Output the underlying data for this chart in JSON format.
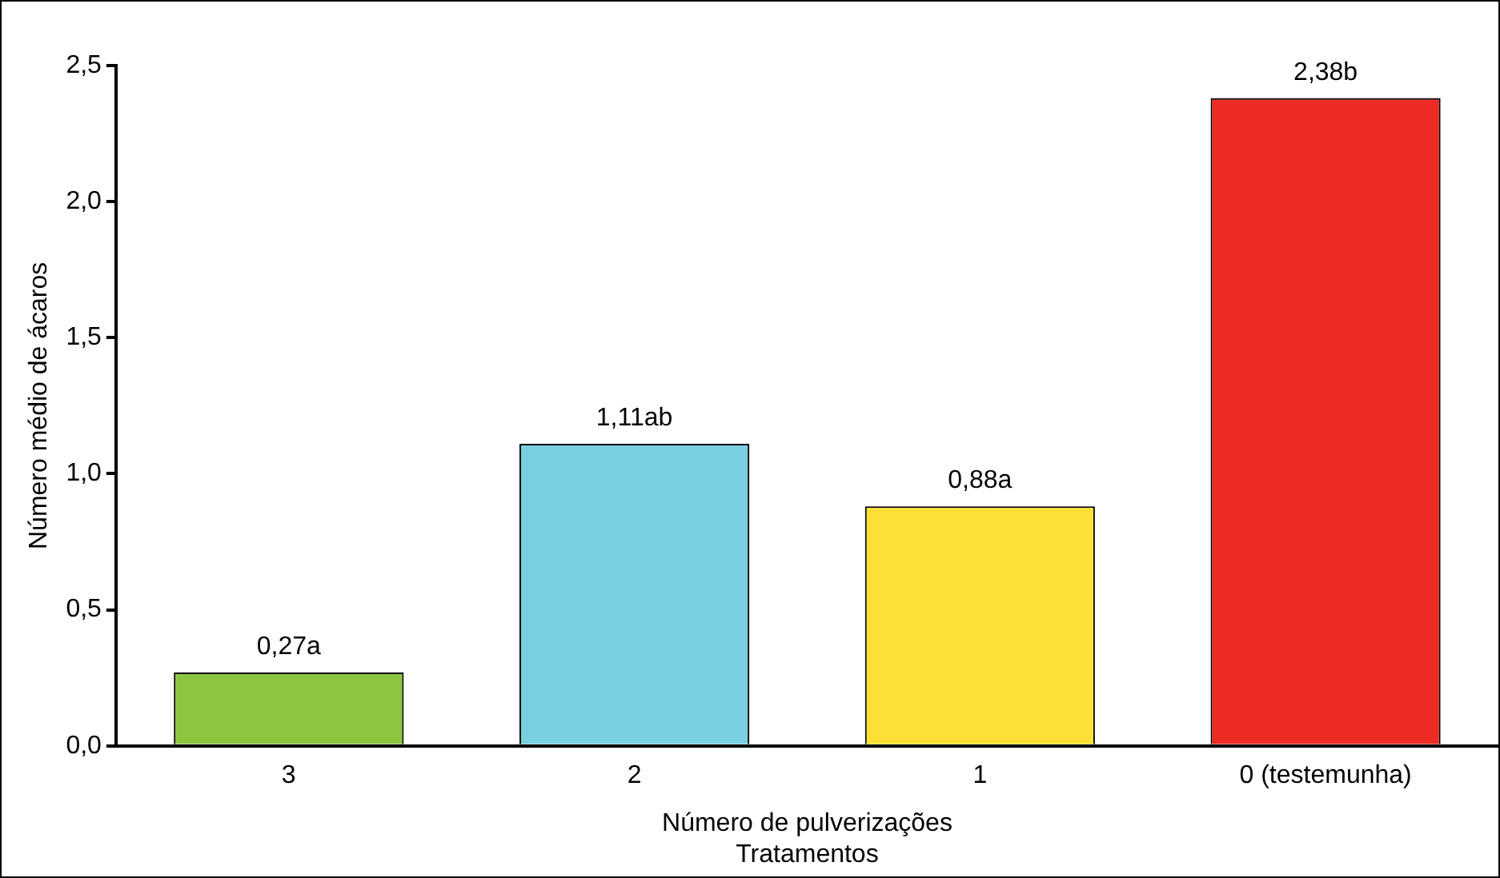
{
  "chart_data": {
    "type": "bar",
    "xlabel": "Número de pulverizações\nTratamentos",
    "ylabel": "Número médio de ácaros",
    "categories": [
      "3",
      "2",
      "1",
      "0 (testemunha)"
    ],
    "values": [
      0.27,
      1.11,
      0.88,
      2.38
    ],
    "colors": [
      "#8cc63f",
      "#7acfe0",
      "#fde035",
      "#ee2b24"
    ],
    "value_labels": [
      "0,27a",
      "1,11ab",
      "0,88a",
      "2,38b"
    ],
    "ylim": [
      0,
      2.5
    ],
    "yticks": [
      {
        "value": 0,
        "label": "0,0"
      },
      {
        "value": 0.5,
        "label": "0,5"
      },
      {
        "value": 1,
        "label": "1,0"
      },
      {
        "value": 1.5,
        "label": "1,5"
      },
      {
        "value": 2,
        "label": "2,0"
      },
      {
        "value": 2.5,
        "label": "2,5"
      }
    ],
    "grid": false,
    "legend": false
  }
}
